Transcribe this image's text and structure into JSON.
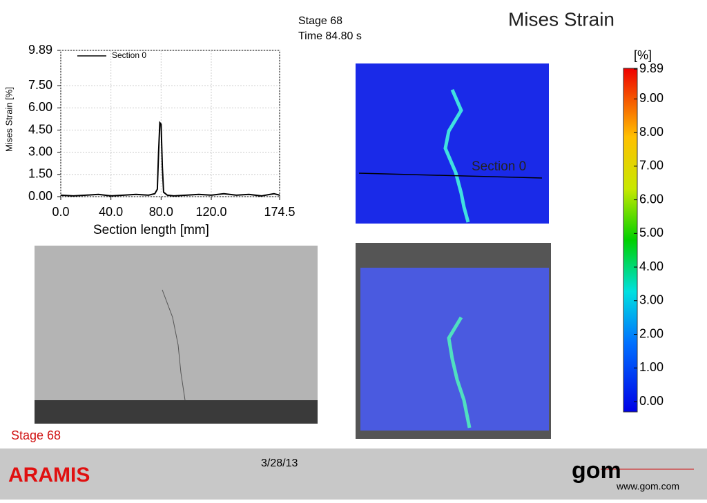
{
  "header": {
    "stage": "Stage 68",
    "time": "Time  84.80 s",
    "title": "Mises Strain"
  },
  "chart_data": {
    "type": "line",
    "xlabel": "Section length [mm]",
    "ylabel": "Mises Strain [%]",
    "x": [
      0,
      10,
      20,
      30,
      40,
      50,
      60,
      70,
      75,
      77,
      78,
      79,
      80,
      81,
      82,
      85,
      90,
      100,
      110,
      120,
      130,
      140,
      150,
      160,
      170,
      174.5
    ],
    "series": [
      {
        "name": "Section 0",
        "color": "#000000",
        "values": [
          0.1,
          0.05,
          0.1,
          0.15,
          0.05,
          0.1,
          0.15,
          0.1,
          0.2,
          0.5,
          3.0,
          5.0,
          4.9,
          2.0,
          0.3,
          0.1,
          0.05,
          0.1,
          0.15,
          0.1,
          0.2,
          0.1,
          0.15,
          0.05,
          0.2,
          0.1
        ]
      }
    ],
    "xlim": [
      0,
      174.5
    ],
    "ylim": [
      0,
      9.89
    ],
    "xticks": [
      {
        "value": 0,
        "label": "0.0"
      },
      {
        "value": 40,
        "label": "40.0"
      },
      {
        "value": 80,
        "label": "80.0"
      },
      {
        "value": 120,
        "label": "120.0"
      },
      174.5
    ],
    "yticks": [
      {
        "value": 0,
        "label": "0.00"
      },
      {
        "value": 1.5,
        "label": "1.50"
      },
      {
        "value": 3,
        "label": "3.00"
      },
      {
        "value": 4.5,
        "label": "4.50"
      },
      {
        "value": 6,
        "label": "6.00"
      },
      {
        "value": 7.5,
        "label": "7.50"
      },
      9.89
    ],
    "grid": true,
    "legend": "upper-left"
  },
  "colorbar": {
    "unit": "[%]",
    "lim": [
      0,
      9.89
    ],
    "ticks": [
      9.89,
      {
        "value": 9,
        "label": "9.00"
      },
      {
        "value": 8,
        "label": "8.00"
      },
      {
        "value": 7,
        "label": "7.00"
      },
      {
        "value": 6,
        "label": "6.00"
      },
      {
        "value": 5,
        "label": "5.00"
      },
      {
        "value": 4,
        "label": "4.00"
      },
      {
        "value": 3,
        "label": "3.00"
      },
      {
        "value": 2,
        "label": "2.00"
      },
      {
        "value": 1,
        "label": "1.00"
      },
      {
        "value": 0,
        "label": "0.00"
      }
    ]
  },
  "images": {
    "section_label": "Section 0"
  },
  "stage_label": "Stage 68",
  "footer": {
    "brand": "ARAMIS",
    "date": "3/28/13",
    "logo": "gom",
    "url": "www.gom.com"
  }
}
